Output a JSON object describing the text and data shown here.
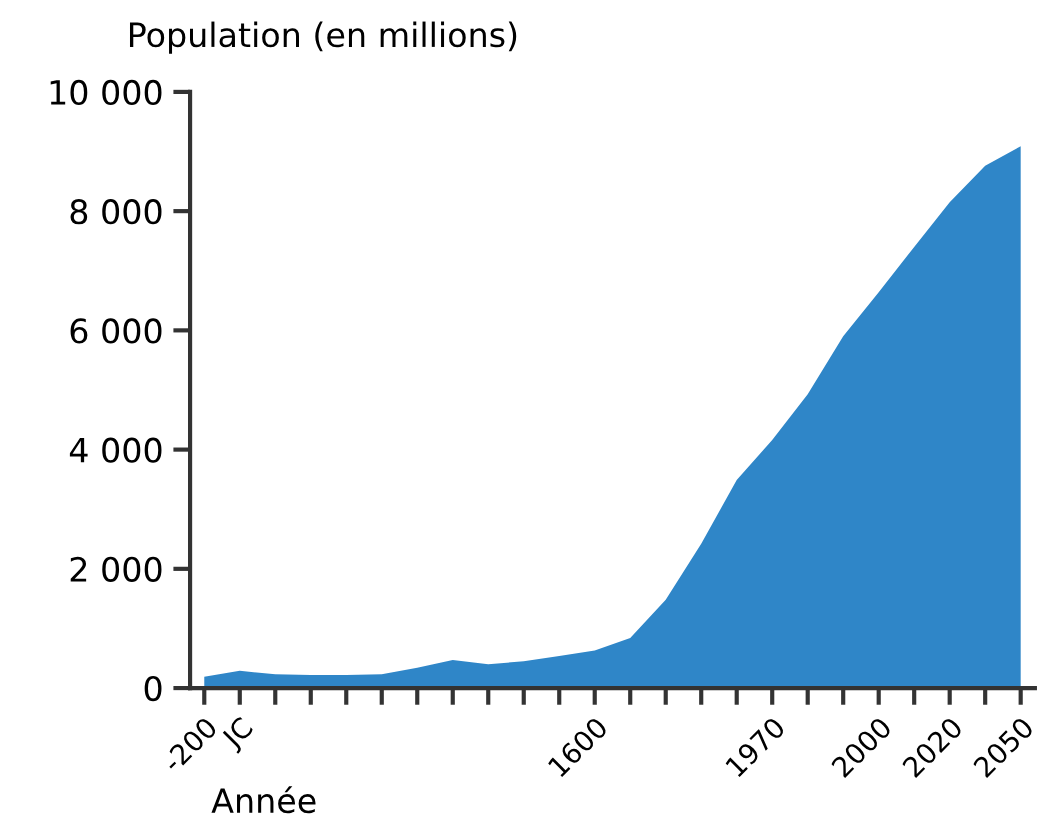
{
  "chart_data": {
    "type": "area",
    "ylabel": "Population (en millions)",
    "xlabel": "Année",
    "categories": [
      "-200",
      "JC",
      null,
      null,
      null,
      null,
      null,
      null,
      null,
      null,
      null,
      "1600",
      null,
      null,
      null,
      null,
      "1970",
      null,
      null,
      "2000",
      null,
      "2020",
      null,
      "2050"
    ],
    "series": [
      {
        "color": "#2f86c8",
        "values": [
          190,
          290,
          230,
          220,
          220,
          230,
          340,
          470,
          400,
          450,
          540,
          630,
          840,
          1480,
          2420,
          3490,
          4160,
          4930,
          5900,
          6640,
          7400,
          8150,
          8760,
          9090
        ]
      }
    ],
    "ylim": [
      0,
      10000
    ],
    "yticks": [
      0,
      {
        "value": 2000,
        "label": "2 000"
      },
      {
        "value": 4000,
        "label": "4 000"
      },
      {
        "value": 6000,
        "label": "6 000"
      },
      {
        "value": 8000,
        "label": "8 000"
      },
      {
        "value": 10000,
        "label": "10 000"
      }
    ],
    "grid": false
  }
}
